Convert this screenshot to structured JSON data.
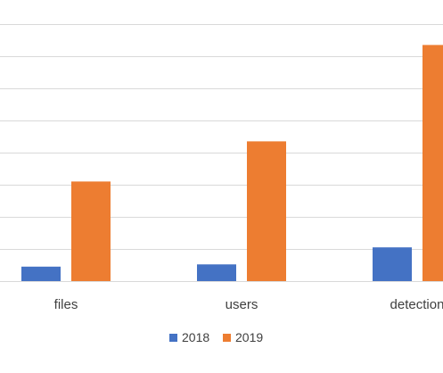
{
  "chart_data": {
    "type": "bar",
    "categories": [
      "files",
      "users",
      "detection"
    ],
    "series": [
      {
        "name": "2018",
        "color": "#4472C4",
        "values": [
          4.5,
          5.2,
          10.5
        ]
      },
      {
        "name": "2019",
        "color": "#ED7D31",
        "values": [
          31,
          43.5,
          73.5
        ]
      }
    ],
    "ylim": [
      0,
      90
    ],
    "y_gridlines": [
      10,
      20,
      30,
      40,
      50,
      60,
      70,
      80,
      90
    ],
    "grid": true,
    "title": "",
    "xlabel": "",
    "ylabel": "",
    "legend": {
      "position": "bottom",
      "entries": [
        "2018",
        "2019"
      ]
    }
  }
}
